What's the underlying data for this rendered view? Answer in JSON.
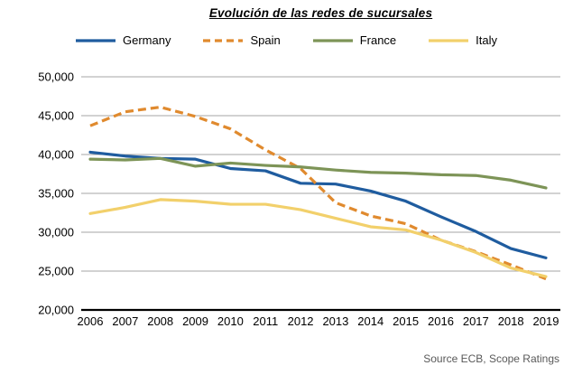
{
  "header": {
    "title": "Evolución de las redes de sucursales"
  },
  "source": "Source ECB, Scope Ratings",
  "colors": {
    "background": "#ffffff",
    "gridline": "#a6a6a6",
    "axis": "#000000",
    "tick_text": "#000000",
    "source_text": "#595959",
    "germany": "#1f5c9f",
    "spain": "#e08a2e",
    "france": "#7d9457",
    "italy": "#f2d06b"
  },
  "chart_data": {
    "type": "line",
    "title": "Evolución de las redes de sucursales",
    "xlabel": "",
    "ylabel": "",
    "x": [
      2006,
      2007,
      2008,
      2009,
      2010,
      2011,
      2012,
      2013,
      2014,
      2015,
      2016,
      2017,
      2018,
      2019
    ],
    "x_labels": [
      "2006",
      "2007",
      "2008",
      "2009",
      "2010",
      "2011",
      "2012",
      "2013",
      "2014",
      "2015",
      "2016",
      "2017",
      "2018",
      "2019"
    ],
    "series": [
      {
        "name": "Germany",
        "color": "#1f5c9f",
        "dash": "solid",
        "values": [
          40300,
          39800,
          39500,
          39400,
          38200,
          37900,
          36300,
          36200,
          35300,
          34000,
          32000,
          30100,
          27900,
          26700
        ]
      },
      {
        "name": "Spain",
        "color": "#e08a2e",
        "dash": "dashed",
        "values": [
          43700,
          45500,
          46100,
          44900,
          43300,
          40600,
          38200,
          33800,
          32100,
          31100,
          29000,
          27500,
          25800,
          24000
        ]
      },
      {
        "name": "France",
        "color": "#7d9457",
        "dash": "solid",
        "values": [
          39400,
          39300,
          39500,
          38500,
          38900,
          38600,
          38400,
          38000,
          37700,
          37600,
          37400,
          37300,
          36700,
          35700
        ]
      },
      {
        "name": "Italy",
        "color": "#f2d06b",
        "dash": "solid",
        "values": [
          32400,
          33200,
          34200,
          34000,
          33600,
          33600,
          32900,
          31800,
          30700,
          30300,
          29000,
          27400,
          25400,
          24300
        ]
      }
    ],
    "ylim": [
      20000,
      50000
    ],
    "yticks": [
      20000,
      25000,
      30000,
      35000,
      40000,
      45000,
      50000
    ],
    "ytick_labels": [
      "20,000",
      "25,000",
      "30,000",
      "35,000",
      "40,000",
      "45,000",
      "50,000"
    ],
    "grid": true,
    "legend_position": "top"
  }
}
